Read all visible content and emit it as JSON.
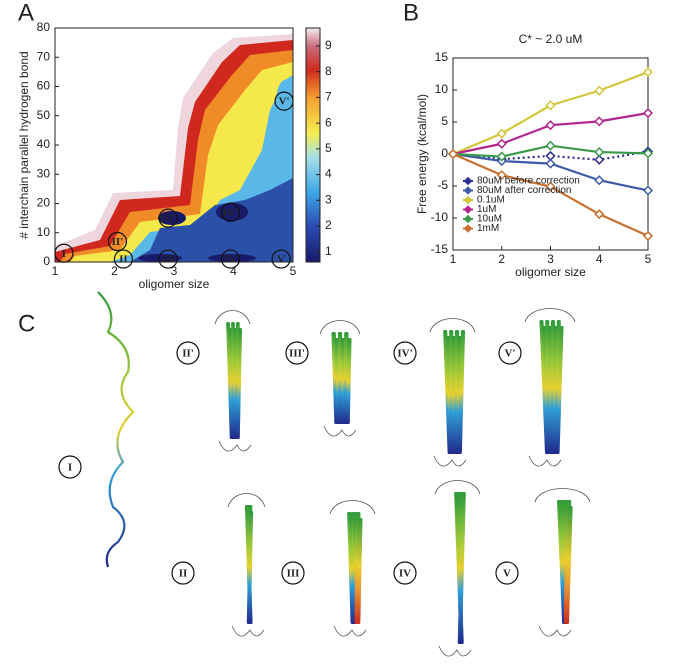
{
  "panel_labels": [
    "A",
    "B",
    "C"
  ],
  "chart_data": [
    {
      "type": "contour",
      "xlabel": "oligomer size",
      "ylabel": "# interchain parallel  hydrogen bond",
      "xlim": [
        1,
        5
      ],
      "xticks": [
        1,
        2,
        3,
        4,
        5
      ],
      "ylim": [
        0,
        80
      ],
      "yticks": [
        0,
        10,
        20,
        30,
        40,
        50,
        60,
        70,
        80
      ],
      "colorbar": {
        "lim": [
          0.6,
          9.7
        ],
        "ticks": [
          1,
          2,
          3,
          4,
          5,
          6,
          7,
          8,
          9
        ]
      },
      "annotations": [
        {
          "text": "I",
          "x": 1.15,
          "y": 3
        },
        {
          "text": "II'",
          "x": 2.05,
          "y": 7
        },
        {
          "text": "II",
          "x": 2.15,
          "y": 1
        },
        {
          "text": "III'",
          "x": 2.9,
          "y": 15
        },
        {
          "text": "III",
          "x": 2.9,
          "y": 1
        },
        {
          "text": "IV'",
          "x": 3.95,
          "y": 17
        },
        {
          "text": "IV",
          "x": 3.95,
          "y": 1
        },
        {
          "text": "V'",
          "x": 4.85,
          "y": 55
        },
        {
          "text": "V",
          "x": 4.8,
          "y": 1
        }
      ]
    },
    {
      "type": "line",
      "title": "C* ~ 2.0 uM",
      "xlabel": "oligomer size",
      "ylabel": "Free energy (kcal/mol)",
      "x": [
        1,
        2,
        3,
        4,
        5
      ],
      "xlim": [
        1,
        5
      ],
      "xticks": [
        1,
        2,
        3,
        4,
        5
      ],
      "ylim": [
        -15,
        15
      ],
      "yticks": [
        -15,
        -10,
        -5,
        0,
        5,
        10,
        15
      ],
      "legend": "lower left",
      "marker": "diamond",
      "series": [
        {
          "name": "80uM before correction",
          "color": "#2e2e8e",
          "linestyle": "dotted",
          "values": [
            0,
            -0.8,
            -0.3,
            -0.9,
            0.4
          ]
        },
        {
          "name": "80uM after correction",
          "color": "#3d5aa8",
          "linestyle": "solid",
          "values": [
            0,
            -1.1,
            -1.5,
            -4.1,
            -5.7
          ]
        },
        {
          "name": "0.1uM",
          "color": "#d4c73a",
          "linestyle": "solid",
          "values": [
            0,
            3.2,
            7.6,
            9.9,
            12.8
          ]
        },
        {
          "name": "1uM",
          "color": "#b3258f",
          "linestyle": "solid",
          "values": [
            0,
            1.6,
            4.5,
            5.1,
            6.4
          ]
        },
        {
          "name": "10uM",
          "color": "#3a9a4a",
          "linestyle": "solid",
          "values": [
            0,
            -0.4,
            1.3,
            0.3,
            0.1
          ]
        },
        {
          "name": "1mM",
          "color": "#c8702e",
          "linestyle": "solid",
          "values": [
            0,
            -3.3,
            -5.1,
            -9.4,
            -12.8
          ]
        }
      ]
    }
  ],
  "structures": {
    "labels": [
      "I",
      "II'",
      "III'",
      "IV'",
      "V'",
      "II",
      "III",
      "IV",
      "V"
    ]
  }
}
